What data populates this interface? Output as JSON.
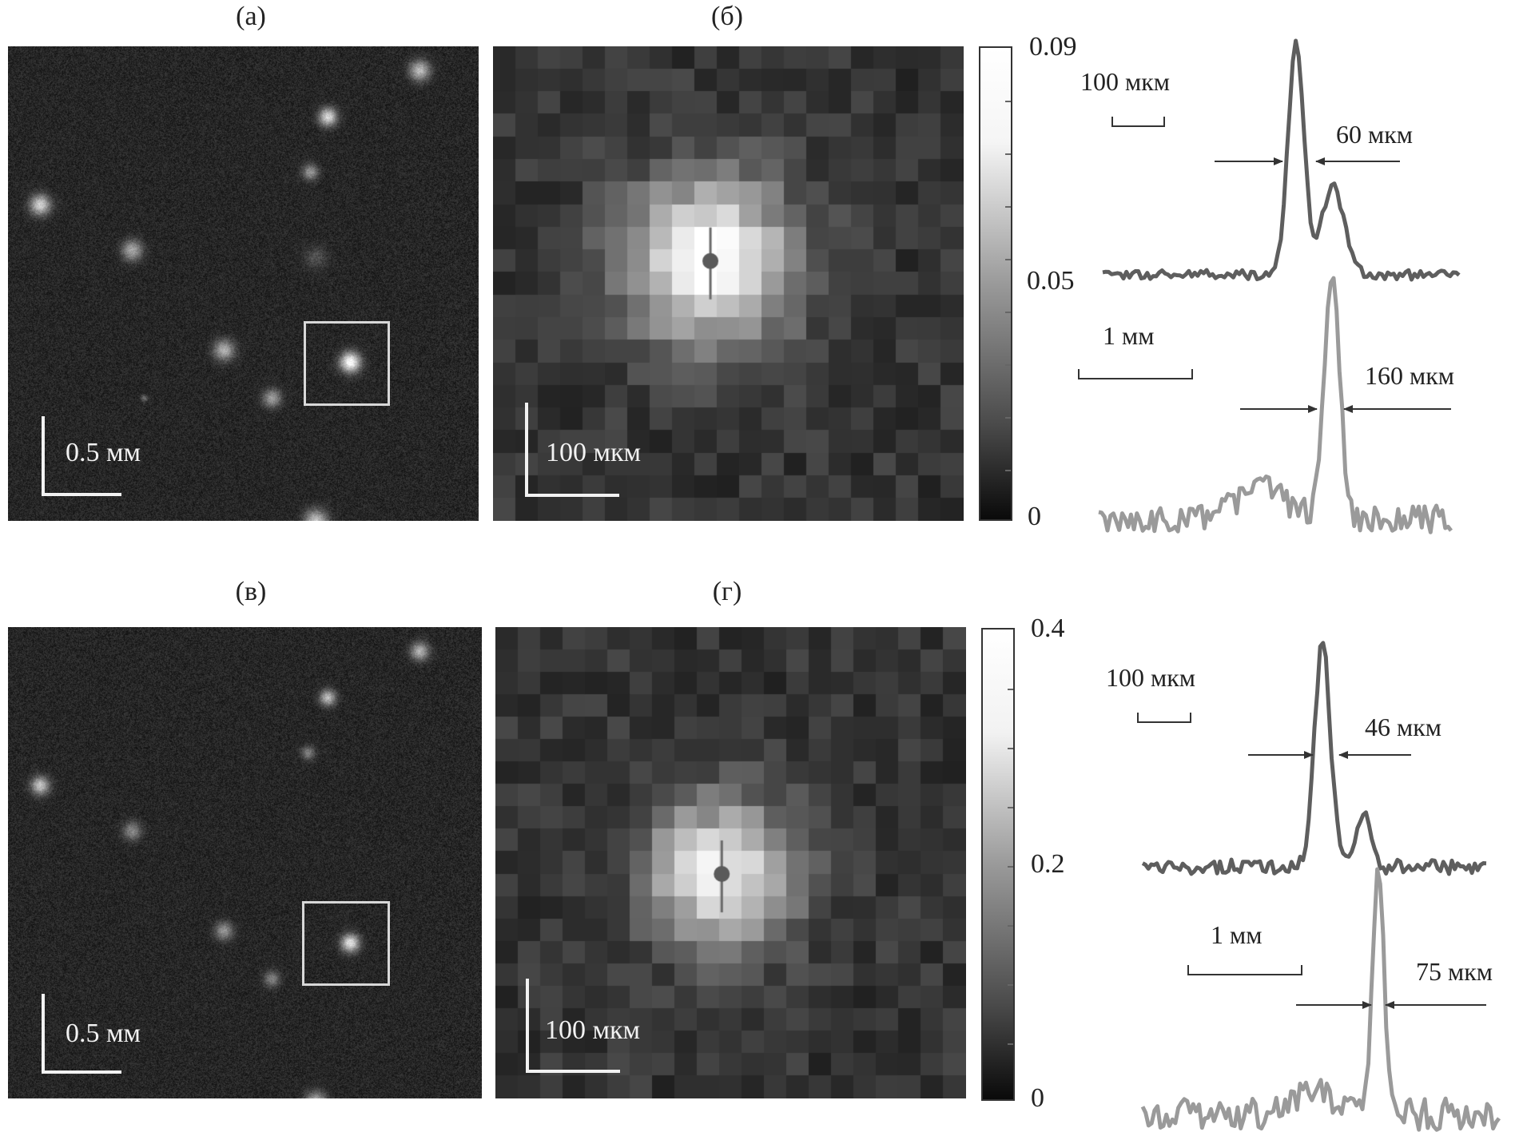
{
  "labels": {
    "a": "(а)",
    "b": "(б)",
    "c": "(в)",
    "d": "(г)"
  },
  "scale_labels": {
    "a": "0.5 мм",
    "b": "100 мкм",
    "c": "0.5 мм",
    "d": "100 мкм"
  },
  "colorbars": {
    "top": {
      "max": "0.09",
      "mid": "0.05",
      "min": "0",
      "values": [
        0,
        0.05,
        0.09
      ]
    },
    "bottom": {
      "max": "0.4",
      "mid": "0.2",
      "min": "0",
      "values": [
        0,
        0.2,
        0.4
      ]
    }
  },
  "profiles": {
    "top": {
      "narrow_scale": "100 мкм",
      "narrow_fwhm": "60 мкм",
      "wide_scale": "1 мм",
      "wide_fwhm": "160 мкм"
    },
    "bottom": {
      "narrow_scale": "100 мкм",
      "narrow_fwhm": "46 мкм",
      "wide_scale": "1 мм",
      "wide_fwhm": "75 мкм"
    }
  },
  "colors": {
    "dark_profile": "#5e5e5e",
    "light_profile": "#9a9a9a",
    "arrow": "#333333"
  }
}
